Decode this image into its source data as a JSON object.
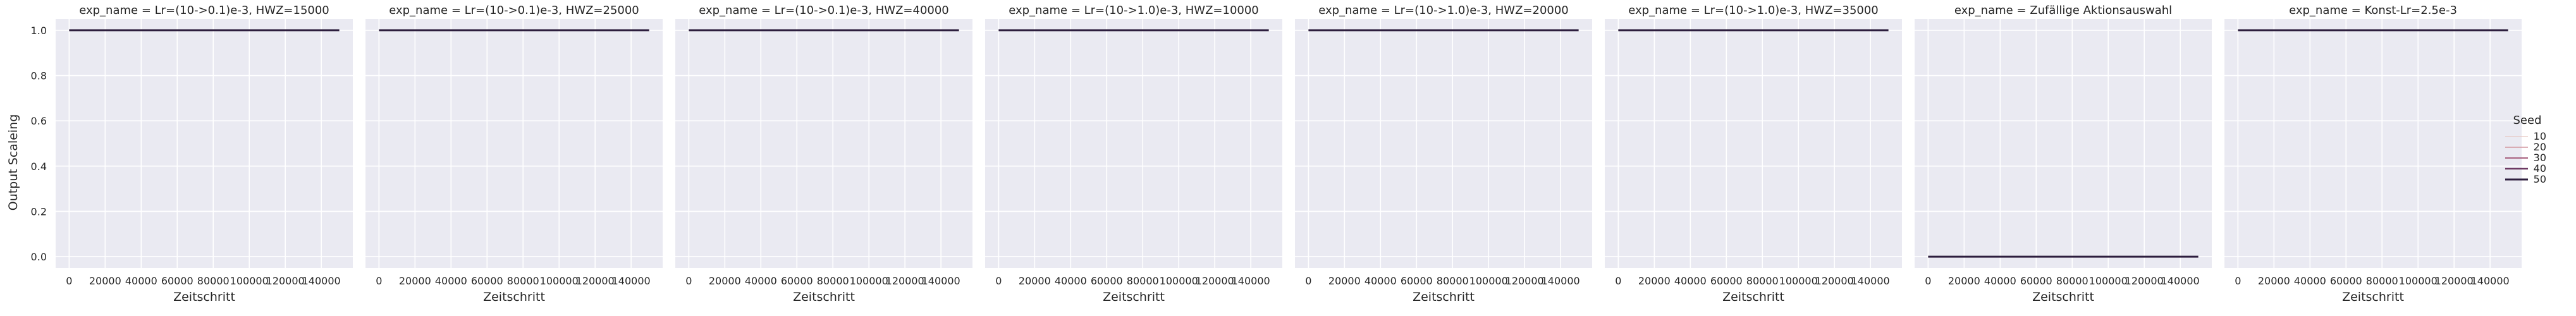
{
  "chart_data": {
    "type": "line",
    "ylabel": "Output Scaleing",
    "xlabel": "Zeitschritt",
    "xlim": [
      -7500,
      157500
    ],
    "ylim": [
      -0.05,
      1.05
    ],
    "x_ticks": [
      0,
      20000,
      40000,
      60000,
      80000,
      100000,
      120000,
      140000
    ],
    "y_ticks": [
      0.0,
      0.2,
      0.4,
      0.6,
      0.8,
      1.0
    ],
    "y_tick_labels": [
      "0.0",
      "0.2",
      "0.4",
      "0.6",
      "0.8",
      "1.0"
    ],
    "grid": true,
    "legend": {
      "title": "Seed",
      "placement": "right",
      "entries": [
        {
          "label": "10",
          "color": "#e8c7c1"
        },
        {
          "label": "20",
          "color": "#d397a0"
        },
        {
          "label": "30",
          "color": "#a8607f"
        },
        {
          "label": "40",
          "color": "#6d3a63"
        },
        {
          "label": "50",
          "color": "#2d1e3e"
        }
      ]
    },
    "facets": [
      {
        "title": "exp_name = Lr=(10->0.1)e-3, HWZ=15000",
        "x": [
          0,
          150000
        ],
        "series": [
          {
            "name": "50",
            "values": [
              1.0,
              1.0
            ]
          }
        ]
      },
      {
        "title": "exp_name = Lr=(10->0.1)e-3, HWZ=25000",
        "x": [
          0,
          150000
        ],
        "series": [
          {
            "name": "50",
            "values": [
              1.0,
              1.0
            ]
          }
        ]
      },
      {
        "title": "exp_name = Lr=(10->0.1)e-3, HWZ=40000",
        "x": [
          0,
          150000
        ],
        "series": [
          {
            "name": "50",
            "values": [
              1.0,
              1.0
            ]
          }
        ]
      },
      {
        "title": "exp_name = Lr=(10->1.0)e-3, HWZ=10000",
        "x": [
          0,
          150000
        ],
        "series": [
          {
            "name": "50",
            "values": [
              1.0,
              1.0
            ]
          }
        ]
      },
      {
        "title": "exp_name = Lr=(10->1.0)e-3, HWZ=20000",
        "x": [
          0,
          150000
        ],
        "series": [
          {
            "name": "50",
            "values": [
              1.0,
              1.0
            ]
          }
        ]
      },
      {
        "title": "exp_name = Lr=(10->1.0)e-3, HWZ=35000",
        "x": [
          0,
          150000
        ],
        "series": [
          {
            "name": "50",
            "values": [
              1.0,
              1.0
            ]
          }
        ]
      },
      {
        "title": "exp_name = Zufällige Aktionsauswahl",
        "x": [
          0,
          150000
        ],
        "series": [
          {
            "name": "50",
            "values": [
              0.0,
              0.0
            ]
          }
        ]
      },
      {
        "title": "exp_name = Konst-Lr=2.5e-3",
        "x": [
          0,
          150000
        ],
        "series": [
          {
            "name": "50",
            "values": [
              1.0,
              1.0
            ]
          }
        ]
      }
    ]
  }
}
